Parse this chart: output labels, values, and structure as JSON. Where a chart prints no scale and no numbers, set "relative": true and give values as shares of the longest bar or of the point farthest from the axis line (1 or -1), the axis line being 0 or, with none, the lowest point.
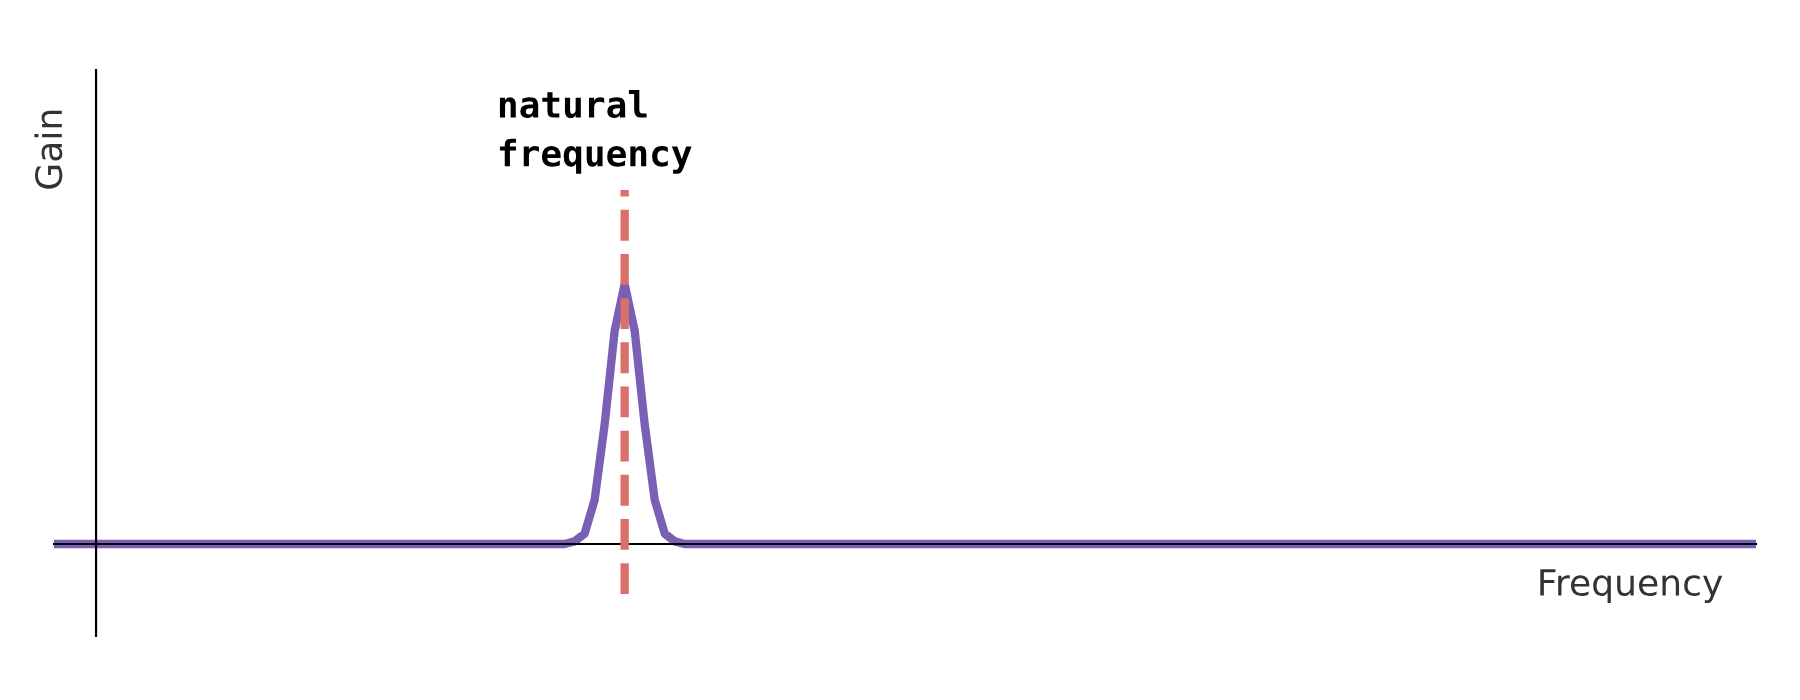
{
  "chart_data": {
    "type": "line",
    "relative": true,
    "xlabel": "Frequency",
    "ylabel": "Gain",
    "tick_labels": false,
    "legend": false,
    "marker": "none",
    "line_style": "solid",
    "categories": [
      null,
      null,
      null,
      null,
      null,
      null,
      null,
      null,
      null,
      null,
      null,
      null,
      null,
      null,
      null,
      null,
      null,
      null,
      null,
      null,
      null,
      null,
      null,
      null,
      null,
      null,
      null,
      null,
      null,
      null,
      null,
      null,
      null,
      null,
      null,
      null,
      null,
      null,
      null,
      null,
      null,
      null,
      null,
      null,
      null,
      null,
      null,
      null,
      null,
      null,
      null,
      null,
      null,
      null,
      null,
      null,
      null,
      null,
      null,
      null,
      null,
      null,
      null,
      null,
      null,
      null,
      null,
      null,
      null,
      null,
      null,
      null,
      null,
      null,
      null,
      null,
      null,
      null,
      null,
      null,
      null,
      null,
      null,
      null,
      null,
      null,
      null,
      null,
      null,
      null,
      null,
      null,
      null,
      null,
      null,
      null,
      null,
      null,
      null,
      null,
      null,
      null,
      null,
      null,
      null,
      null,
      null,
      null,
      null,
      null,
      null,
      null,
      null,
      null,
      null,
      null,
      null,
      null,
      null,
      null,
      null,
      null,
      null,
      null,
      null,
      null,
      null,
      null,
      null,
      null,
      null,
      null,
      null,
      null,
      null,
      null,
      null,
      null,
      null,
      null,
      null,
      null,
      null,
      null,
      null,
      null,
      null,
      null,
      null,
      null,
      null,
      null,
      null,
      null,
      null,
      null,
      null,
      null,
      null,
      null,
      null,
      null,
      null,
      null,
      null,
      null,
      null,
      null,
      null,
      null,
      null
    ],
    "series": [
      {
        "color": "#7b5fb5",
        "values": [
          0,
          0,
          0,
          0,
          0,
          0,
          0,
          0,
          0,
          0,
          0,
          0,
          0,
          0,
          0,
          0,
          0,
          0,
          0,
          0,
          0,
          0,
          0,
          0,
          0,
          0,
          0,
          0,
          0,
          0,
          0,
          0,
          0,
          0,
          0,
          0,
          0,
          0,
          0,
          0,
          0,
          0,
          0,
          0,
          0,
          0,
          0,
          0,
          0,
          0,
          0,
          0,
          0.01,
          0.04,
          0.17,
          0.46,
          0.82,
          1,
          0.82,
          0.46,
          0.17,
          0.04,
          0.01,
          0,
          0,
          0,
          0,
          0,
          0,
          0,
          0,
          0,
          0,
          0,
          0,
          0,
          0,
          0,
          0,
          0,
          0,
          0,
          0,
          0,
          0,
          0,
          0,
          0,
          0,
          0,
          0,
          0,
          0,
          0,
          0,
          0,
          0,
          0,
          0,
          0,
          0,
          0,
          0,
          0,
          0,
          0,
          0,
          0,
          0,
          0,
          0,
          0,
          0,
          0,
          0,
          0,
          0,
          0,
          0,
          0,
          0,
          0,
          0,
          0,
          0,
          0,
          0,
          0,
          0,
          0,
          0,
          0,
          0,
          0,
          0,
          0,
          0,
          0,
          0,
          0,
          0,
          0,
          0,
          0,
          0,
          0,
          0,
          0,
          0,
          0,
          0,
          0,
          0,
          0,
          0,
          0,
          0,
          0,
          0,
          0,
          0,
          0,
          0,
          0,
          0,
          0,
          0,
          0,
          0,
          0,
          0
        ]
      }
    ],
    "annotations": [
      "natural frequency"
    ]
  }
}
